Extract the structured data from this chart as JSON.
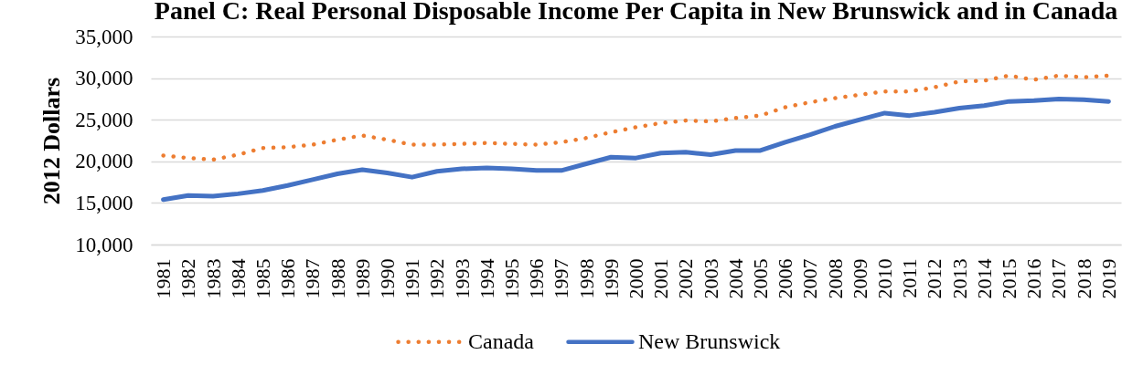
{
  "chart_data": {
    "type": "line",
    "title": "Panel C: Real Personal Disposable Income Per Capita in New Brunswick and in Canada",
    "ylabel": "2012 Dollars",
    "categories": [
      "1981",
      "1982",
      "1983",
      "1984",
      "1985",
      "1986",
      "1987",
      "1988",
      "1989",
      "1990",
      "1991",
      "1992",
      "1993",
      "1994",
      "1995",
      "1996",
      "1997",
      "1998",
      "1999",
      "2000",
      "2001",
      "2002",
      "2003",
      "2004",
      "2005",
      "2006",
      "2007",
      "2008",
      "2009",
      "2010",
      "2011",
      "2012",
      "2013",
      "2014",
      "2015",
      "2016",
      "2017",
      "2018",
      "2019"
    ],
    "series": [
      {
        "name": "Canada",
        "color": "#ed7d31",
        "line_style": "dotted",
        "values": [
          20700,
          20400,
          20200,
          20800,
          21600,
          21700,
          22000,
          22600,
          23100,
          22600,
          22000,
          22000,
          22100,
          22200,
          22100,
          22000,
          22300,
          22800,
          23500,
          24100,
          24600,
          24900,
          24800,
          25200,
          25500,
          26500,
          27100,
          27600,
          28000,
          28400,
          28400,
          28900,
          29600,
          29700,
          30300,
          29800,
          30300,
          30100,
          30300
        ]
      },
      {
        "name": "New Brunswick",
        "color": "#4472c4",
        "line_style": "solid",
        "values": [
          15400,
          15900,
          15800,
          16100,
          16500,
          17100,
          17800,
          18500,
          19000,
          18600,
          18100,
          18800,
          19100,
          19200,
          19100,
          18900,
          18900,
          19700,
          20500,
          20400,
          21000,
          21100,
          20800,
          21300,
          21300,
          22300,
          23200,
          24200,
          25000,
          25800,
          25500,
          25900,
          26400,
          26700,
          27200,
          27300,
          27500,
          27400,
          27200
        ]
      }
    ],
    "ylim": [
      10000,
      35000
    ],
    "yticks": [
      {
        "value": 10000,
        "label": "10,000"
      },
      {
        "value": 15000,
        "label": "15,000"
      },
      {
        "value": 20000,
        "label": "20,000"
      },
      {
        "value": 25000,
        "label": "25,000"
      },
      {
        "value": 30000,
        "label": "30,000"
      },
      {
        "value": 35000,
        "label": "35,000"
      }
    ],
    "grid": "y",
    "legend": "bottom"
  }
}
